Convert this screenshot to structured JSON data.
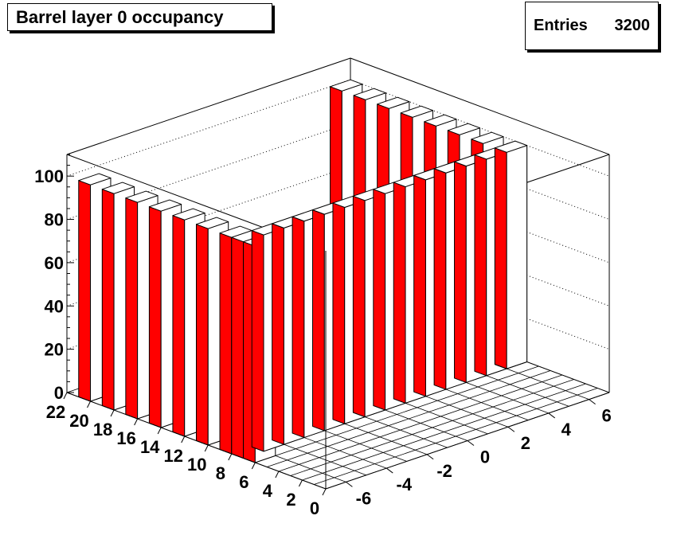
{
  "title": "Barrel layer 0 occupancy",
  "stats": {
    "label": "Entries",
    "value": "3200"
  },
  "colors": {
    "bar": "#ff0000",
    "bar_front": "#ffffff",
    "line": "#000000"
  },
  "chart_data": {
    "type": "lego",
    "title": "Barrel layer 0 occupancy",
    "xlabel": "",
    "ylabel": "",
    "zlabel": "",
    "xlim": [
      0,
      22
    ],
    "ylim": [
      -7,
      7
    ],
    "zlim": [
      0,
      110
    ],
    "x_ticks": [
      0,
      2,
      4,
      6,
      8,
      10,
      12,
      14,
      16,
      18,
      20,
      22
    ],
    "y_ticks": [
      -6,
      -4,
      -2,
      0,
      2,
      4,
      6
    ],
    "z_ticks": [
      0,
      20,
      40,
      60,
      80,
      100
    ],
    "grid": true,
    "bars": [
      {
        "x": 20.5,
        "y": -6.5,
        "value": 100
      },
      {
        "x": 18.5,
        "y": -6.5,
        "value": 100
      },
      {
        "x": 16.5,
        "y": -6.5,
        "value": 100
      },
      {
        "x": 14.5,
        "y": -6.5,
        "value": 100
      },
      {
        "x": 12.5,
        "y": -6.5,
        "value": 100
      },
      {
        "x": 10.5,
        "y": -6.5,
        "value": 100
      },
      {
        "x": 8.5,
        "y": -6.5,
        "value": 100
      },
      {
        "x": 6.5,
        "y": -6.5,
        "value": 100
      },
      {
        "x": 21.5,
        "y": 6.5,
        "value": 100
      },
      {
        "x": 19.5,
        "y": 6.5,
        "value": 100
      },
      {
        "x": 17.5,
        "y": 6.5,
        "value": 100
      },
      {
        "x": 15.5,
        "y": 6.5,
        "value": 100
      },
      {
        "x": 13.5,
        "y": 6.5,
        "value": 100
      },
      {
        "x": 11.5,
        "y": 6.5,
        "value": 100
      },
      {
        "x": 9.5,
        "y": 6.5,
        "value": 100
      },
      {
        "x": 7.5,
        "y": 6.5,
        "value": 100
      },
      {
        "x": 7.5,
        "y": 6.5,
        "value": 100
      },
      {
        "x": 7.5,
        "y": 5.5,
        "value": 100
      },
      {
        "x": 7.5,
        "y": 4.5,
        "value": 100
      },
      {
        "x": 7.5,
        "y": 3.5,
        "value": 100
      },
      {
        "x": 7.5,
        "y": 2.5,
        "value": 100
      },
      {
        "x": 7.5,
        "y": 1.5,
        "value": 100
      },
      {
        "x": 7.5,
        "y": 0.5,
        "value": 100
      },
      {
        "x": 7.5,
        "y": -0.5,
        "value": 100
      },
      {
        "x": 7.5,
        "y": -1.5,
        "value": 100
      },
      {
        "x": 7.5,
        "y": -2.5,
        "value": 100
      },
      {
        "x": 7.5,
        "y": -3.5,
        "value": 100
      },
      {
        "x": 7.5,
        "y": -4.5,
        "value": 100
      },
      {
        "x": 7.5,
        "y": -5.5,
        "value": 100
      },
      {
        "x": 7.5,
        "y": -6.5,
        "value": 100
      }
    ]
  }
}
